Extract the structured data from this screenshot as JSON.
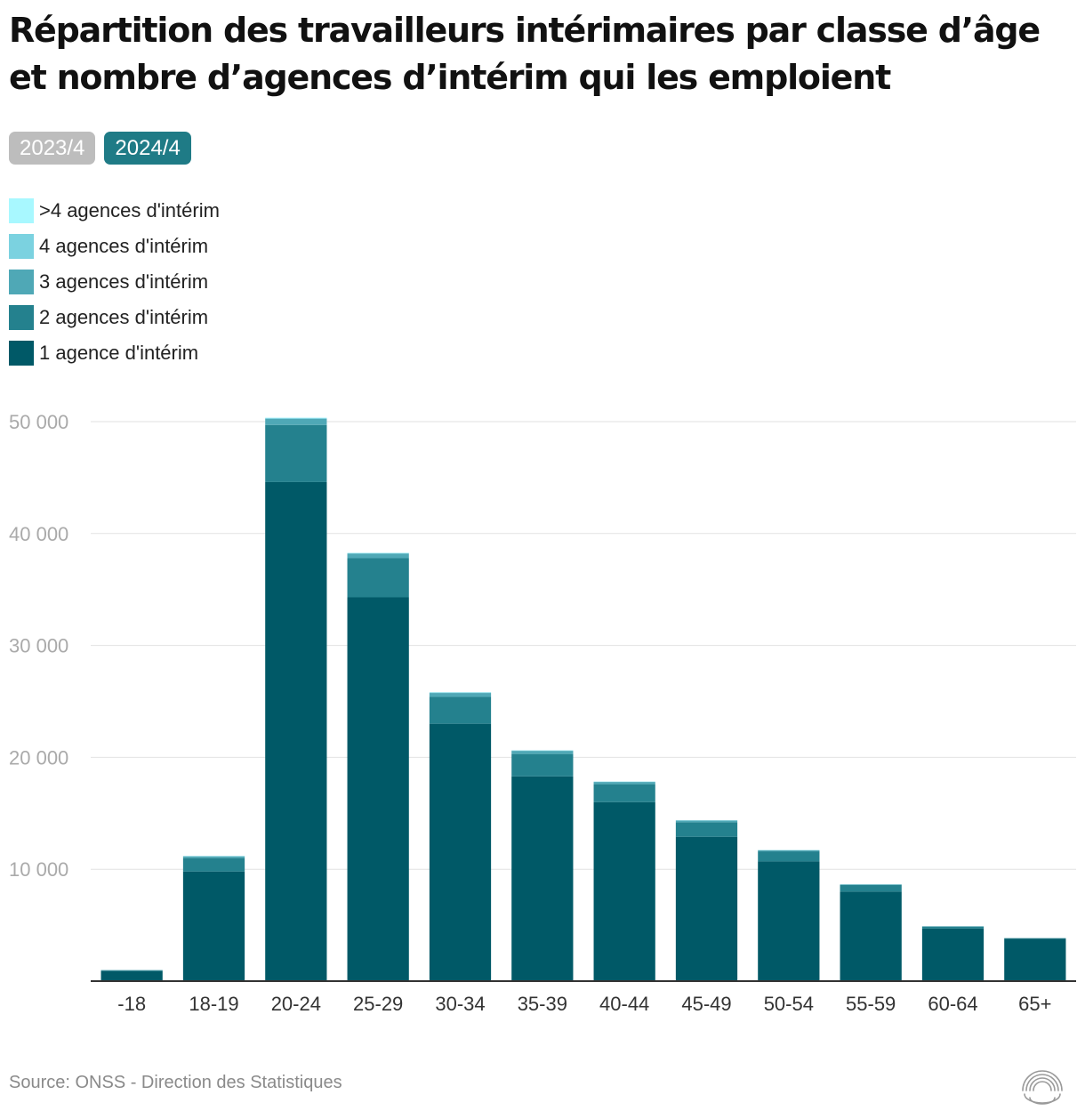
{
  "title": "Répartition des travailleurs intérimaires par classe d’âge et nombre d’agences d’intérim qui les emploient",
  "tabs": [
    {
      "label": "2023/4",
      "active": false
    },
    {
      "label": "2024/4",
      "active": true
    }
  ],
  "source": "Source: ONSS - Direction des Statistiques",
  "colors": {
    "gt4": "#a8f8ff",
    "a4": "#7bd2e0",
    "a3": "#4fa8b6",
    "a2": "#24818e",
    "a1": "#005967",
    "grid": "#e2e2e2",
    "axis": "#333333",
    "tick": "#aaaaaa",
    "xtick": "#333333"
  },
  "chart_data": {
    "type": "bar",
    "stacked": true,
    "categories": [
      "-18",
      "18-19",
      "20-24",
      "25-29",
      "30-34",
      "35-39",
      "40-44",
      "45-49",
      "50-54",
      "55-59",
      "60-64",
      "65+"
    ],
    "series": [
      {
        "name": "1 agence d'intérim",
        "color": "#005967",
        "values": [
          900,
          9800,
          44600,
          34300,
          23000,
          18300,
          16000,
          12900,
          10700,
          8000,
          4700,
          3800
        ]
      },
      {
        "name": "2 agences d'intérim",
        "color": "#24818e",
        "values": [
          80,
          1200,
          5100,
          3500,
          2400,
          2000,
          1600,
          1300,
          900,
          600,
          180,
          40
        ]
      },
      {
        "name": "3 agences d'intérim",
        "color": "#4fa8b6",
        "values": [
          10,
          150,
          550,
          400,
          350,
          280,
          200,
          150,
          100,
          50,
          20,
          5
        ]
      },
      {
        "name": "4 agences d'intérim",
        "color": "#7bd2e0",
        "values": [
          0,
          30,
          80,
          60,
          50,
          40,
          30,
          20,
          15,
          8,
          3,
          1
        ]
      },
      {
        "name": ">4 agences d'intérim",
        "color": "#a8f8ff",
        "values": [
          0,
          10,
          30,
          20,
          15,
          10,
          10,
          8,
          5,
          3,
          1,
          0
        ]
      }
    ],
    "ylim": [
      0,
      50000
    ],
    "yticks": [
      10000,
      20000,
      30000,
      40000,
      50000
    ],
    "ytick_labels": [
      "10 000",
      "20 000",
      "30 000",
      "40 000",
      "50 000"
    ],
    "xlabel": "",
    "ylabel": "",
    "grid": true,
    "legend_position": "top-left"
  }
}
